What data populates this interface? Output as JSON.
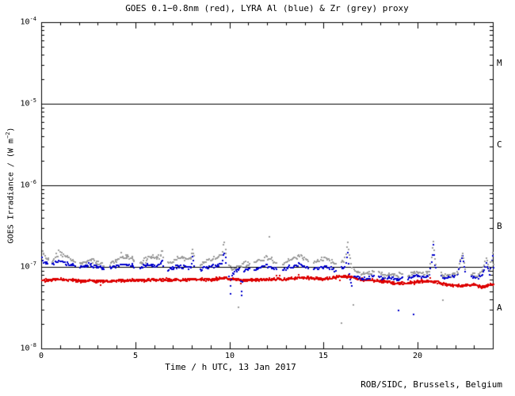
{
  "chart_data": {
    "type": "scatter",
    "title": "GOES 0.1−0.8nm (red), LYRA Al (blue) & Zr (grey) proxy",
    "xlabel": "Time / h UTC, 13 Jan 2017",
    "ylabel": {
      "pre": "GOES Irradiance / (W m",
      "sup": "−2",
      "post": ")"
    },
    "x_axis": {
      "lim": [
        0,
        24
      ],
      "major_ticks": [
        0,
        5,
        10,
        15,
        20
      ],
      "minor_step": 1
    },
    "y_axis": {
      "scale": "log",
      "lim_exp": [
        -8,
        -4
      ],
      "major_tick_exponents": [
        -4,
        -5,
        -6,
        -7,
        -8
      ],
      "unit_base": "10"
    },
    "hlines": [
      1e-05,
      1e-06,
      1e-07
    ],
    "flare_classes": [
      {
        "label": "M",
        "center_exp": -4.5
      },
      {
        "label": "C",
        "center_exp": -5.5
      },
      {
        "label": "B",
        "center_exp": -6.5
      },
      {
        "label": "A",
        "center_exp": -7.5
      }
    ],
    "grid": "off",
    "legend": "in-title",
    "colors": {
      "red": "#dd0000",
      "blue": "#0000cc",
      "grey": "#9c9c9c",
      "axis": "#000000",
      "background": "#ffffff"
    },
    "series": [
      {
        "name": "GOES 0.1-0.8nm",
        "color": "red",
        "style": "continuous",
        "noise_dex": 0.02,
        "step_h": 0.025,
        "points": [
          [
            0,
            7e-08
          ],
          [
            1,
            7.2e-08
          ],
          [
            2,
            6.9e-08
          ],
          [
            3,
            6.8e-08
          ],
          [
            4,
            6.9e-08
          ],
          [
            5,
            7e-08
          ],
          [
            6,
            7.1e-08
          ],
          [
            7,
            7e-08
          ],
          [
            8,
            7.2e-08
          ],
          [
            9,
            7.1e-08
          ],
          [
            9.7,
            7.6e-08
          ],
          [
            10,
            7.2e-08
          ],
          [
            11,
            7e-08
          ],
          [
            12,
            7.2e-08
          ],
          [
            13,
            7.2e-08
          ],
          [
            13.8,
            7.6e-08
          ],
          [
            14.3,
            7.4e-08
          ],
          [
            15,
            7.3e-08
          ],
          [
            15.8,
            7.8e-08
          ],
          [
            16.3,
            7.8e-08
          ],
          [
            17,
            7.2e-08
          ],
          [
            18,
            6.8e-08
          ],
          [
            19,
            6.4e-08
          ],
          [
            19.8,
            6.6e-08
          ],
          [
            20.5,
            6.9e-08
          ],
          [
            21,
            6.6e-08
          ],
          [
            21.7,
            6.1e-08
          ],
          [
            22.3,
            6e-08
          ],
          [
            23,
            6.2e-08
          ],
          [
            23.4,
            5.7e-08
          ],
          [
            24,
            6.3e-08
          ]
        ]
      },
      {
        "name": "LYRA Al proxy",
        "color": "blue",
        "style": "segments",
        "noise_dex": 0.028,
        "step_h": 0.05,
        "segments": [
          [
            [
              0.0,
              1.25e-07
            ],
            [
              0.1,
              1.18e-07
            ],
            [
              0.3,
              1.12e-07
            ]
          ],
          [
            [
              0.55,
              1.12e-07
            ],
            [
              0.75,
              1.18e-07
            ],
            [
              0.95,
              1.2e-07
            ],
            [
              1.15,
              1.17e-07
            ],
            [
              1.35,
              1.12e-07
            ],
            [
              1.55,
              1.08e-07
            ],
            [
              1.75,
              1.05e-07
            ]
          ],
          [
            [
              2.0,
              1e-07
            ],
            [
              2.3,
              1.05e-07
            ],
            [
              2.6,
              1.08e-07
            ],
            [
              2.9,
              1.03e-07
            ],
            [
              3.2,
              9.8e-08
            ],
            [
              3.3,
              9.5e-08
            ]
          ],
          [
            [
              3.6,
              9.8e-08
            ],
            [
              3.9,
              1.03e-07
            ],
            [
              4.2,
              1.08e-07
            ],
            [
              4.5,
              1.1e-07
            ],
            [
              4.8,
              1.05e-07
            ],
            [
              4.9,
              1e-07
            ]
          ],
          [
            [
              5.2,
              1e-07
            ],
            [
              5.5,
              1.05e-07
            ],
            [
              5.8,
              1.08e-07
            ],
            [
              6.1,
              1.05e-07
            ],
            [
              6.3,
              1.08e-07
            ],
            [
              6.4,
              1.25e-07
            ],
            [
              6.45,
              1.05e-07
            ]
          ],
          [
            [
              6.7,
              9.5e-08
            ],
            [
              7.0,
              1e-07
            ],
            [
              7.3,
              1.05e-07
            ],
            [
              7.6,
              1.02e-07
            ],
            [
              7.9,
              1e-07
            ],
            [
              8.0,
              1.35e-07
            ],
            [
              8.1,
              1.05e-07
            ]
          ],
          [
            [
              8.4,
              9.5e-08
            ],
            [
              8.7,
              1e-07
            ],
            [
              9.0,
              1.03e-07
            ],
            [
              9.3,
              1.06e-07
            ],
            [
              9.55,
              1.15e-07
            ],
            [
              9.7,
              1.55e-07
            ],
            [
              9.78,
              1.15e-07
            ]
          ],
          [
            [
              9.95,
              8e-08
            ],
            [
              10.02,
              5e-08
            ],
            [
              10.1,
              8.5e-08
            ],
            [
              10.3,
              9e-08
            ],
            [
              10.5,
              9.5e-08
            ],
            [
              10.62,
              4.5e-08
            ],
            [
              10.72,
              9e-08
            ],
            [
              10.9,
              9.5e-08
            ],
            [
              11.05,
              9.8e-08
            ]
          ],
          [
            [
              11.3,
              9.5e-08
            ],
            [
              11.6,
              1e-07
            ],
            [
              11.9,
              1.05e-07
            ],
            [
              12.2,
              1e-07
            ],
            [
              12.45,
              9.5e-08
            ]
          ],
          [
            [
              12.8,
              9.5e-08
            ],
            [
              13.1,
              1e-07
            ],
            [
              13.4,
              1.05e-07
            ],
            [
              13.7,
              1.08e-07
            ],
            [
              14.0,
              1.02e-07
            ],
            [
              14.15,
              9.7e-08
            ]
          ],
          [
            [
              14.45,
              9.5e-08
            ],
            [
              14.75,
              1e-07
            ],
            [
              15.05,
              1.05e-07
            ],
            [
              15.35,
              9.8e-08
            ],
            [
              15.6,
              9.2e-08
            ]
          ],
          [
            [
              15.9,
              9.8e-08
            ],
            [
              16.1,
              1.02e-07
            ],
            [
              16.25,
              1.5e-07
            ],
            [
              16.38,
              7.5e-08
            ],
            [
              16.48,
              6e-08
            ]
          ],
          [
            [
              16.6,
              8e-08
            ],
            [
              16.9,
              7.5e-08
            ],
            [
              17.2,
              7.2e-08
            ],
            [
              17.5,
              7.8e-08
            ],
            [
              17.65,
              8e-08
            ]
          ],
          [
            [
              17.9,
              7.8e-08
            ],
            [
              18.2,
              7.4e-08
            ],
            [
              18.5,
              7.8e-08
            ],
            [
              18.8,
              7.2e-08
            ],
            [
              19.15,
              7.6e-08
            ]
          ],
          [
            [
              19.45,
              7.2e-08
            ],
            [
              19.7,
              7.6e-08
            ],
            [
              20.0,
              8e-08
            ],
            [
              20.3,
              7.6e-08
            ],
            [
              20.6,
              8e-08
            ],
            [
              20.8,
              1.85e-07
            ],
            [
              20.92,
              1e-07
            ]
          ],
          [
            [
              21.2,
              7.8e-08
            ],
            [
              21.5,
              7.4e-08
            ],
            [
              21.8,
              7.8e-08
            ],
            [
              22.1,
              8.2e-08
            ],
            [
              22.35,
              1.4e-07
            ],
            [
              22.5,
              9e-08
            ]
          ],
          [
            [
              22.8,
              7.8e-08
            ],
            [
              23.1,
              7.4e-08
            ],
            [
              23.4,
              8.2e-08
            ],
            [
              23.6,
              1.1e-07
            ],
            [
              23.8,
              8.5e-08
            ],
            [
              23.95,
              1.35e-07
            ],
            [
              24.0,
              1e-07
            ]
          ]
        ],
        "outliers": [
          [
            18.95,
            3e-08
          ],
          [
            19.75,
            2.7e-08
          ]
        ]
      },
      {
        "name": "LYRA Zr proxy",
        "color": "grey",
        "style": "segments",
        "noise_dex": 0.032,
        "step_h": 0.05,
        "segments": [
          [
            [
              0.0,
              2e-07
            ],
            [
              0.04,
              1.6e-07
            ],
            [
              0.1,
              1.45e-07
            ],
            [
              0.22,
              1.3e-07
            ],
            [
              0.35,
              1.25e-07
            ]
          ],
          [
            [
              0.55,
              1.2e-07
            ],
            [
              0.75,
              1.4e-07
            ],
            [
              0.95,
              1.45e-07
            ],
            [
              1.15,
              1.42e-07
            ],
            [
              1.35,
              1.35e-07
            ],
            [
              1.55,
              1.25e-07
            ],
            [
              1.75,
              1.18e-07
            ]
          ],
          [
            [
              2.0,
              1.12e-07
            ],
            [
              2.3,
              1.2e-07
            ],
            [
              2.6,
              1.25e-07
            ],
            [
              2.9,
              1.18e-07
            ],
            [
              3.2,
              1.1e-07
            ],
            [
              3.3,
              1.05e-07
            ]
          ],
          [
            [
              3.6,
              1.1e-07
            ],
            [
              3.9,
              1.2e-07
            ],
            [
              4.2,
              1.3e-07
            ],
            [
              4.5,
              1.35e-07
            ],
            [
              4.8,
              1.3e-07
            ],
            [
              4.9,
              1.2e-07
            ]
          ],
          [
            [
              5.2,
              1.15e-07
            ],
            [
              5.5,
              1.28e-07
            ],
            [
              5.8,
              1.38e-07
            ],
            [
              6.1,
              1.32e-07
            ],
            [
              6.3,
              1.38e-07
            ],
            [
              6.4,
              1.6e-07
            ],
            [
              6.45,
              1.35e-07
            ]
          ],
          [
            [
              6.7,
              1.15e-07
            ],
            [
              7.0,
              1.25e-07
            ],
            [
              7.3,
              1.35e-07
            ],
            [
              7.6,
              1.3e-07
            ],
            [
              7.9,
              1.28e-07
            ],
            [
              8.0,
              1.65e-07
            ],
            [
              8.1,
              1.4e-07
            ]
          ],
          [
            [
              8.4,
              1.12e-07
            ],
            [
              8.7,
              1.2e-07
            ],
            [
              9.0,
              1.28e-07
            ],
            [
              9.3,
              1.33e-07
            ],
            [
              9.55,
              1.45e-07
            ],
            [
              9.7,
              2.05e-07
            ],
            [
              9.78,
              1.5e-07
            ]
          ],
          [
            [
              9.95,
              1.05e-07
            ],
            [
              10.1,
              9.5e-08
            ],
            [
              10.3,
              1e-07
            ],
            [
              10.5,
              1.05e-07
            ],
            [
              10.7,
              1.08e-07
            ],
            [
              10.9,
              1.1e-07
            ],
            [
              11.05,
              1.12e-07
            ]
          ],
          [
            [
              11.3,
              1.12e-07
            ],
            [
              11.6,
              1.22e-07
            ],
            [
              11.9,
              1.3e-07
            ],
            [
              12.2,
              1.25e-07
            ],
            [
              12.45,
              1.15e-07
            ]
          ],
          [
            [
              12.8,
              1.12e-07
            ],
            [
              13.1,
              1.22e-07
            ],
            [
              13.4,
              1.32e-07
            ],
            [
              13.7,
              1.38e-07
            ],
            [
              14.0,
              1.3e-07
            ],
            [
              14.15,
              1.2e-07
            ]
          ],
          [
            [
              14.45,
              1.15e-07
            ],
            [
              14.75,
              1.25e-07
            ],
            [
              15.05,
              1.3e-07
            ],
            [
              15.35,
              1.2e-07
            ],
            [
              15.6,
              1.12e-07
            ]
          ],
          [
            [
              15.9,
              1.18e-07
            ],
            [
              16.1,
              1.28e-07
            ],
            [
              16.25,
              2e-07
            ],
            [
              16.38,
              1.3e-07
            ],
            [
              16.48,
              1e-07
            ]
          ],
          [
            [
              16.6,
              9.5e-08
            ],
            [
              16.9,
              8.5e-08
            ],
            [
              17.2,
              8.2e-08
            ],
            [
              17.5,
              8.6e-08
            ],
            [
              17.65,
              9e-08
            ]
          ],
          [
            [
              17.9,
              8.6e-08
            ],
            [
              18.2,
              8e-08
            ],
            [
              18.5,
              8.4e-08
            ],
            [
              18.8,
              8e-08
            ],
            [
              19.15,
              8.4e-08
            ]
          ],
          [
            [
              19.45,
              8e-08
            ],
            [
              19.7,
              8.4e-08
            ],
            [
              20.0,
              8.8e-08
            ],
            [
              20.3,
              8.4e-08
            ],
            [
              20.6,
              8.8e-08
            ],
            [
              20.8,
              2.1e-07
            ],
            [
              20.92,
              1.1e-07
            ]
          ],
          [
            [
              21.2,
              8.4e-08
            ],
            [
              21.5,
              8e-08
            ],
            [
              21.8,
              8.4e-08
            ],
            [
              22.1,
              8.8e-08
            ],
            [
              22.35,
              1.55e-07
            ],
            [
              22.5,
              9.5e-08
            ]
          ],
          [
            [
              22.8,
              8.4e-08
            ],
            [
              23.1,
              8e-08
            ],
            [
              23.4,
              8.8e-08
            ],
            [
              23.6,
              1.3e-07
            ],
            [
              23.8,
              9e-08
            ],
            [
              23.95,
              1.5e-07
            ],
            [
              24.0,
              1.1e-07
            ]
          ]
        ],
        "outliers": [
          [
            10.45,
            3.3e-08
          ],
          [
            12.1,
            2.4e-07
          ],
          [
            15.9,
            2.1e-08
          ],
          [
            16.55,
            3.5e-08
          ],
          [
            21.3,
            4e-08
          ]
        ]
      }
    ]
  },
  "footer": {
    "credit": "ROB/SIDC, Brussels, Belgium"
  }
}
